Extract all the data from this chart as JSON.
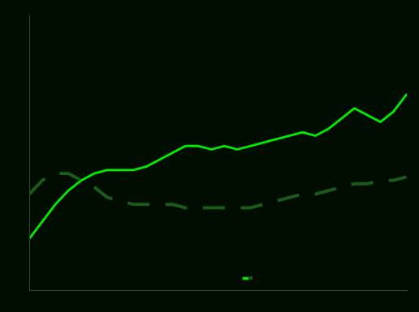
{
  "background_color": "#000d00",
  "plot_bg_color": "#000d00",
  "solid_line_color": "#00ee00",
  "dashed_line_color": "#1a5c1a",
  "axis_color": "#2d4a2d",
  "solid_line": [
    45,
    50,
    55,
    59,
    62,
    64,
    65,
    65,
    65,
    66,
    68,
    70,
    72,
    72,
    71,
    72,
    71,
    72,
    73,
    74,
    75,
    76,
    75,
    77,
    80,
    83,
    81,
    79,
    82,
    87
  ],
  "dashed_line": [
    58,
    62,
    64,
    64,
    62,
    60,
    57,
    56,
    55,
    55,
    55,
    55,
    54,
    54,
    54,
    54,
    54,
    54,
    55,
    56,
    57,
    58,
    58,
    59,
    60,
    61,
    61,
    62,
    62,
    63
  ],
  "n_points": 30,
  "ylim": [
    30,
    110
  ],
  "xlim": [
    0,
    29
  ]
}
